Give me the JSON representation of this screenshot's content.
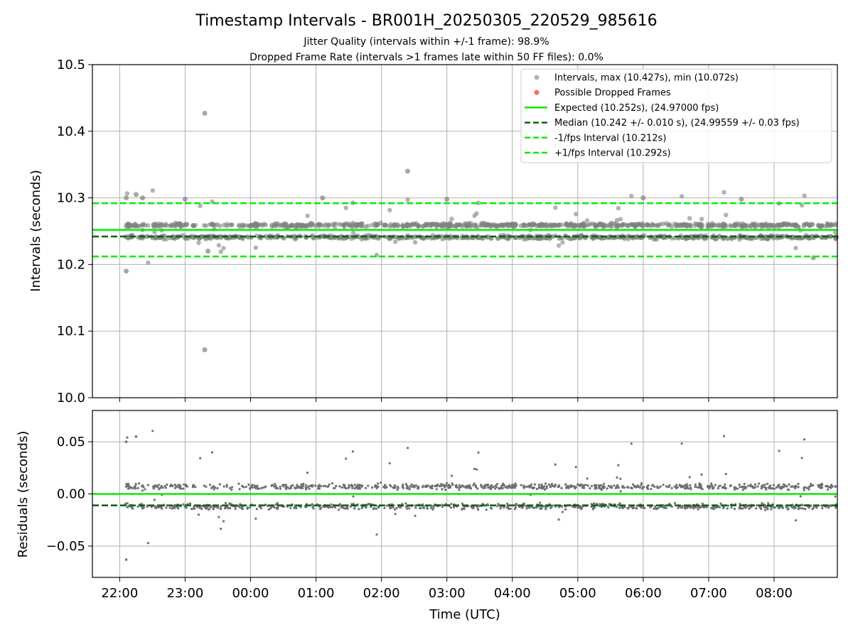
{
  "chart_data": [
    {
      "type": "scatter",
      "panel": "top",
      "title": "Timestamp Intervals - BR001H_20250305_220529_985616",
      "subtitle_1": "Jitter Quality (intervals within +/-1 frame): 98.9%",
      "subtitle_2": "Dropped Frame Rate (intervals >1 frames late within 50 FF files): 0.0%",
      "xlabel": "",
      "ylabel": "Intervals (seconds)",
      "ylim": [
        10.0,
        10.5
      ],
      "xlim_hours_utc": [
        "21:35",
        "08:58"
      ],
      "yticks": [
        "10.0",
        "10.1",
        "10.2",
        "10.3",
        "10.4",
        "10.5"
      ],
      "xticks": [
        "22:00",
        "23:00",
        "00:00",
        "01:00",
        "02:00",
        "03:00",
        "04:00",
        "05:00",
        "06:00",
        "07:00",
        "08:00"
      ],
      "grid": true,
      "legend_position": "top-right",
      "legend": [
        {
          "label": "Intervals, max (10.427s), min (10.072s)",
          "kind": "marker",
          "color": "#808080"
        },
        {
          "label": "Possible Dropped Frames",
          "kind": "marker",
          "color": "#ff0000"
        },
        {
          "label": "Expected (10.252s), (24.97000 fps)",
          "kind": "solid",
          "color": "#00ee00"
        },
        {
          "label": "Median (10.242 +/- 0.010 s), (24.99559 +/- 0.03 fps)",
          "kind": "dashed",
          "color": "#006400"
        },
        {
          "label": "-1/fps Interval (10.212s)",
          "kind": "dashed",
          "color": "#00ee00"
        },
        {
          "label": "+1/fps Interval (10.292s)",
          "kind": "dashed",
          "color": "#00ee00"
        }
      ],
      "lines": {
        "expected": 10.252,
        "median": 10.242,
        "minus_fps": 10.212,
        "plus_fps": 10.292
      },
      "series": [
        {
          "name": "Intervals, max (10.427s), min (10.072s)",
          "cluster_levels": [
            10.259,
            10.241
          ],
          "data_range_hours": [
            "22:05",
            "08:58"
          ],
          "outliers": [
            [
              22.1,
              10.19
            ],
            [
              23.3,
              10.427
            ],
            [
              23.3,
              10.072
            ],
            [
              2.4,
              10.34
            ],
            [
              22.1,
              10.3
            ],
            [
              22.25,
              10.305
            ],
            [
              22.35,
              10.3
            ],
            [
              23.0,
              10.298
            ],
            [
              23.35,
              10.22
            ],
            [
              1.1,
              10.3
            ],
            [
              3.0,
              10.298
            ],
            [
              6.0,
              10.3
            ],
            [
              7.5,
              10.298
            ],
            [
              8.6,
              10.21
            ]
          ]
        }
      ]
    },
    {
      "type": "scatter",
      "panel": "bottom",
      "xlabel": "Time (UTC)",
      "ylabel": "Residuals (seconds)",
      "ylim": [
        -0.08,
        0.08
      ],
      "yticks": [
        "−0.05",
        "0.00",
        "0.05"
      ],
      "xticks": [
        "22:00",
        "23:00",
        "00:00",
        "01:00",
        "02:00",
        "03:00",
        "04:00",
        "05:00",
        "06:00",
        "07:00",
        "08:00"
      ],
      "grid": true,
      "lines": {
        "expected": 0.0,
        "median": -0.011
      },
      "series": [
        {
          "name": "Residuals",
          "cluster_levels": [
            0.007,
            -0.012
          ],
          "outliers": [
            [
              22.1,
              -0.063
            ],
            [
              22.25,
              0.055
            ],
            [
              22.1,
              0.05
            ]
          ]
        }
      ]
    }
  ],
  "colors": {
    "points": "#808080",
    "expected": "#00ee00",
    "median": "#006400",
    "grid": "#b0b0b0"
  }
}
